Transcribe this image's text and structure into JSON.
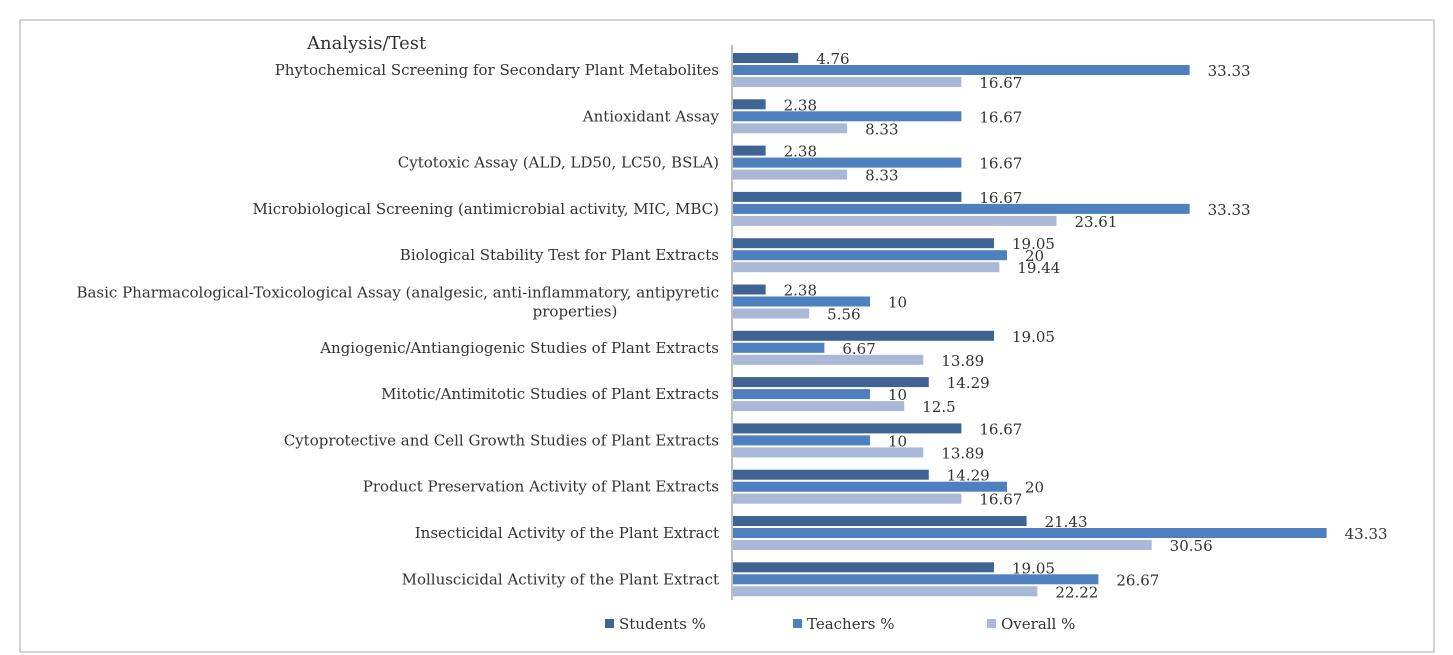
{
  "chart_data": {
    "type": "bar",
    "orientation": "horizontal",
    "axis_title": "Analysis/Test",
    "categories": [
      "Phytochemical Screening for Secondary Plant Metabolites",
      "Antioxidant Assay",
      "Cytotoxic Assay (ALD, LD50, LC50, BSLA)",
      "Microbiological Screening (antimicrobial activity, MIC, MBC)",
      "Biological Stability Test for Plant Extracts",
      "Basic Pharmacological-Toxicological Assay (analgesic, anti-inflammatory, antipyretic\nproperties)",
      "Angiogenic/Antiangiogenic Studies of Plant Extracts",
      "Mitotic/Antimitotic Studies of Plant Extracts",
      "Cytoprotective and Cell Growth Studies of Plant Extracts",
      "Product Preservation Activity of Plant Extracts",
      "Insecticidal Activity of the Plant Extract",
      "Molluscicidal Activity of the Plant Extract"
    ],
    "series": [
      {
        "name": "Students  %",
        "color": "#3f6494",
        "values": [
          4.76,
          2.38,
          2.38,
          16.67,
          19.05,
          2.38,
          19.05,
          14.29,
          16.67,
          14.29,
          21.43,
          19.05
        ]
      },
      {
        "name": "Teachers  %",
        "color": "#4e7fbf",
        "values": [
          33.33,
          16.67,
          16.67,
          33.33,
          20,
          10,
          6.67,
          10,
          10,
          20,
          43.33,
          26.67
        ]
      },
      {
        "name": "Overall  %",
        "color": "#a8b8d6",
        "values": [
          16.67,
          8.33,
          8.33,
          23.61,
          19.44,
          5.56,
          13.89,
          12.5,
          13.89,
          16.67,
          30.56,
          22.22
        ]
      }
    ],
    "xlim": [
      0,
      45
    ],
    "grid": false,
    "legend_position": "bottom"
  }
}
